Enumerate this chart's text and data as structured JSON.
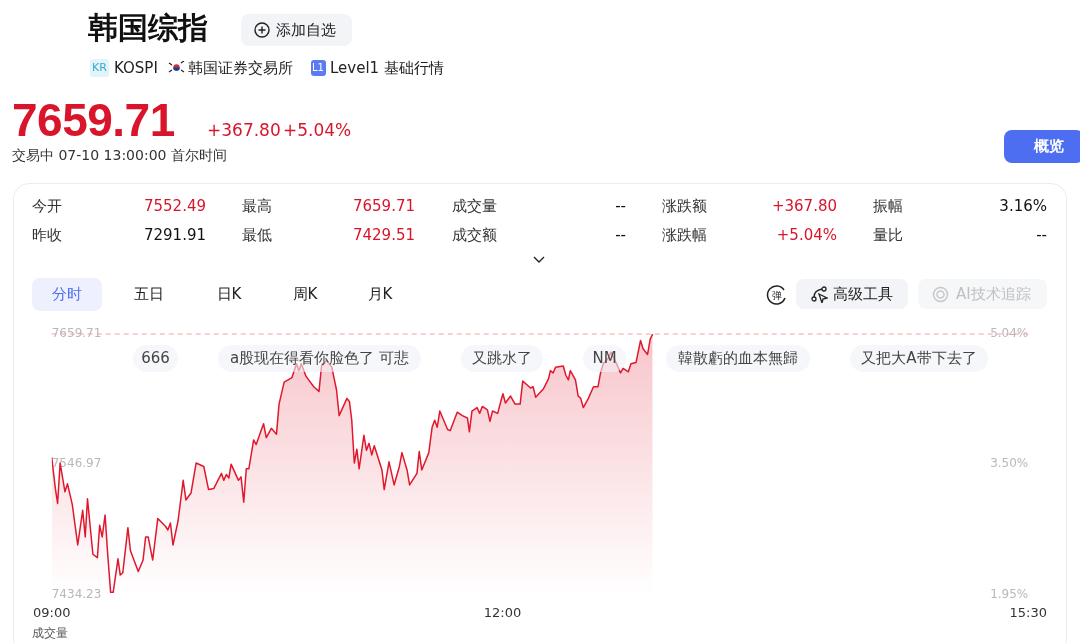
{
  "chart_data": {
    "type": "line",
    "title": "韩国综指",
    "annotations": [
      "KOSPI",
      "韩国证券交易所",
      "Level1 基础行情",
      "7659.71",
      "+367.80",
      "+5.04%",
      "交易中 07-10 13:00:00 首尔时间",
      "添加自选",
      "概览",
      "今开",
      "7552.49",
      "最高",
      "7659.71",
      "成交量",
      "--",
      "涨跌额",
      "+367.80",
      "振幅",
      "3.16%",
      "昨收",
      "7291.91",
      "最低",
      "7429.51",
      "成交额",
      "--",
      "涨跌幅",
      "+5.04%",
      "量比",
      "--",
      "分时",
      "五日",
      "日K",
      "周K",
      "月K",
      "高级工具",
      "AI技术追踪",
      "666",
      "a股现在得看你脸色了 可悲",
      "又跳水了",
      "NM",
      "韓散虧的血本無歸",
      "又把大A带下去了",
      "成交量",
      "KR",
      "L1",
      "弹"
    ],
    "x": [
      9.0,
      9.024,
      9.039,
      9.056,
      9.088,
      9.105,
      9.137,
      9.173,
      9.206,
      9.223,
      9.238,
      9.274,
      9.304,
      9.319,
      9.336,
      9.355,
      9.372,
      9.392,
      9.409,
      9.441,
      9.456,
      9.473,
      9.507,
      9.524,
      9.576,
      9.608,
      9.625,
      9.642,
      9.672,
      9.706,
      9.758,
      9.773,
      9.79,
      9.807,
      9.841,
      9.875,
      9.893,
      9.927,
      9.961,
      10.012,
      10.044,
      10.079,
      10.13,
      10.145,
      10.162,
      10.179,
      10.194,
      10.243,
      10.26,
      10.278,
      10.295,
      10.312,
      10.344,
      10.361,
      10.393,
      10.41,
      10.428,
      10.462,
      10.496,
      10.513,
      10.547,
      10.599,
      10.629,
      10.646,
      10.661,
      10.693,
      10.744,
      10.779,
      10.796,
      10.83,
      10.864,
      10.896,
      10.913,
      10.965,
      10.982,
      10.997,
      11.014,
      11.031,
      11.046,
      11.078,
      11.095,
      11.112,
      11.13,
      11.147,
      11.198,
      11.213,
      11.245,
      11.279,
      11.314,
      11.331,
      11.365,
      11.382,
      11.431,
      11.446,
      11.463,
      11.51,
      11.532,
      11.549,
      11.566,
      11.583,
      11.635,
      11.652,
      11.699,
      11.733,
      11.767,
      11.78,
      11.797,
      11.831,
      11.849,
      11.866,
      11.9,
      11.917,
      11.934,
      11.968,
      12.003,
      12.02,
      12.054,
      12.084,
      12.118,
      12.135,
      12.187,
      12.204,
      12.221,
      12.272,
      12.307,
      12.319,
      12.337,
      12.354,
      12.405,
      12.422,
      12.439,
      12.452,
      12.486,
      12.504,
      12.521,
      12.538,
      12.572,
      12.606,
      12.636,
      12.653,
      12.671,
      12.705,
      12.722,
      12.756,
      12.786,
      12.803,
      12.838,
      12.855,
      12.889,
      12.919,
      12.936,
      12.966,
      12.983,
      13.0
    ],
    "series": [
      {
        "color": "#e0182d",
        "values": [
          7553,
          7526,
          7513,
          7548,
          7523,
          7530,
          7512,
          7477,
          7507,
          7484,
          7517,
          7469,
          7466,
          7494,
          7484,
          7503,
          7470,
          7436,
          7436,
          7465,
          7451,
          7453,
          7492,
          7472,
          7454,
          7464,
          7484,
          7484,
          7464,
          7500,
          7493,
          7490,
          7496,
          7477,
          7498,
          7533,
          7516,
          7522,
          7548,
          7545,
          7525,
          7526,
          7539,
          7533,
          7538,
          7535,
          7547,
          7533,
          7536,
          7514,
          7543,
          7543,
          7568,
          7564,
          7576,
          7582,
          7570,
          7578,
          7573,
          7599,
          7618,
          7622,
          7634,
          7628,
          7634,
          7623,
          7614,
          7610,
          7632,
          7637,
          7631,
          7611,
          7589,
          7604,
          7601,
          7585,
          7548,
          7560,
          7543,
          7572,
          7559,
          7565,
          7555,
          7563,
          7542,
          7525,
          7549,
          7529,
          7545,
          7557,
          7542,
          7529,
          7539,
          7558,
          7542,
          7557,
          7579,
          7585,
          7579,
          7593,
          7577,
          7576,
          7592,
          7589,
          7587,
          7575,
          7593,
          7596,
          7591,
          7597,
          7594,
          7584,
          7593,
          7591,
          7608,
          7600,
          7606,
          7599,
          7599,
          7619,
          7613,
          7614,
          7605,
          7612,
          7621,
          7628,
          7626,
          7631,
          7632,
          7624,
          7620,
          7628,
          7620,
          7606,
          7604,
          7596,
          7604,
          7614,
          7614,
          7626,
          7634,
          7639,
          7644,
          7635,
          7626,
          7630,
          7627,
          7634,
          7635,
          7654,
          7647,
          7642,
          7655,
          7659.71
        ]
      }
    ],
    "xlim": [
      9,
      15.5
    ],
    "xticks": [
      {
        "value": 9,
        "label": "09:00"
      },
      {
        "value": 12,
        "label": "12:00"
      },
      {
        "value": 15.5,
        "label": "15:30"
      }
    ],
    "ylim": [
      7434.23,
      7659.71
    ],
    "yticks": [
      7434.23,
      7546.97,
      7659.71
    ],
    "y2lim": [
      1.95,
      5.04
    ],
    "y2ticks": [
      {
        "value": 1.95,
        "label": "1.95%"
      },
      {
        "value": 3.5,
        "label": "3.50%"
      },
      {
        "value": 5.04,
        "label": "5.04%"
      }
    ],
    "ref_lines": [
      {
        "axis": "y",
        "value": 7659.71,
        "color": "#f4a0a0",
        "line_style": "dashed"
      }
    ],
    "marker": "none"
  }
}
